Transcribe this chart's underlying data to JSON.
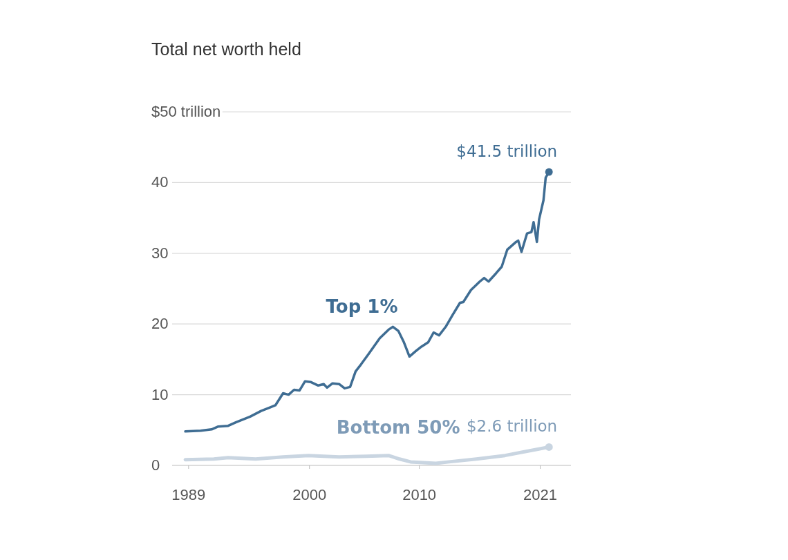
{
  "chart_data": {
    "type": "line",
    "title": "Total net worth held",
    "xlim": [
      1987.5,
      2023.8
    ],
    "xticks": [
      1989,
      2000,
      2010,
      2021
    ],
    "ylim": [
      0,
      50
    ],
    "yticks": [
      0,
      10,
      20,
      30,
      40,
      {
        "value": 50,
        "label": "$50 trillion"
      }
    ],
    "grid": "y",
    "legend": false,
    "marker": "none",
    "line_style": "solid",
    "series": [
      {
        "name": "Top 1%",
        "color": "#3f6d93",
        "x": [
          1988.7,
          1990.1,
          1991.1,
          1991.7,
          1992.6,
          1993.3,
          1994.6,
          1995.6,
          1996.4,
          1996.9,
          1997.6,
          1998.1,
          1998.6,
          1999.1,
          1999.6,
          2000.1,
          2000.8,
          2001.3,
          2001.6,
          2002.1,
          2002.7,
          2003.2,
          2003.7,
          2004.2,
          2004.7,
          2005.4,
          2006.4,
          2007.2,
          2007.6,
          2008.1,
          2008.6,
          2009.1,
          2009.7,
          2010.2,
          2010.8,
          2011.3,
          2011.8,
          2012.4,
          2013.0,
          2013.7,
          2014.0,
          2014.7,
          2015.5,
          2015.9,
          2016.3,
          2017.0,
          2017.5,
          2018.0,
          2018.8,
          2019.0,
          2019.3,
          2019.8,
          2020.2,
          2020.4,
          2020.7,
          2020.9,
          2021.3,
          2021.5,
          2021.8
        ],
        "values": [
          4.8,
          4.9,
          5.1,
          5.5,
          5.6,
          6.1,
          6.9,
          7.7,
          8.2,
          8.5,
          10.2,
          10.0,
          10.7,
          10.6,
          11.9,
          11.8,
          11.3,
          11.5,
          11.0,
          11.6,
          11.5,
          10.9,
          11.1,
          13.3,
          14.3,
          15.8,
          18.0,
          19.2,
          19.6,
          19.0,
          17.4,
          15.4,
          16.2,
          16.8,
          17.4,
          18.8,
          18.4,
          19.6,
          21.2,
          23.0,
          23.1,
          24.8,
          26.0,
          26.5,
          26.0,
          27.2,
          28.1,
          30.5,
          31.6,
          31.8,
          30.2,
          32.8,
          33.0,
          34.4,
          31.6,
          34.8,
          37.5,
          40.7,
          41.5
        ]
      },
      {
        "name": "Bottom 50%",
        "color": "#c9d5e1",
        "x": [
          1988.7,
          1991.3,
          1992.6,
          1995.1,
          1997.6,
          1999.9,
          2002.7,
          2005.2,
          2007.2,
          2008.2,
          2009.2,
          2011.5,
          2012.7,
          2015.2,
          2017.8,
          2019.8,
          2020.8,
          2021.8
        ],
        "values": [
          0.8,
          0.9,
          1.1,
          0.9,
          1.2,
          1.4,
          1.2,
          1.3,
          1.4,
          0.9,
          0.5,
          0.3,
          0.5,
          0.9,
          1.4,
          2.0,
          2.3,
          2.6
        ]
      }
    ],
    "annotations": [
      {
        "text": "$41.5 trillion",
        "x": 2021.8,
        "y": 41.5
      },
      {
        "text": "$2.6 trillion",
        "x": 2021.8,
        "y": 2.6
      }
    ]
  }
}
